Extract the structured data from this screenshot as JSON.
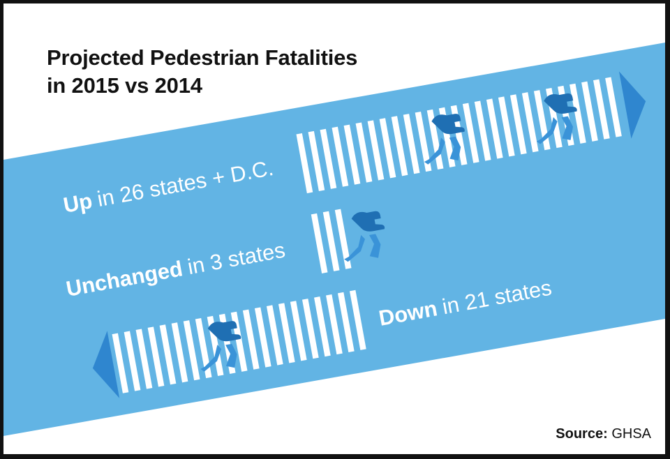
{
  "title": {
    "line1": "Projected Pedestrian Fatalities",
    "line2": "in 2015 vs 2014"
  },
  "source": {
    "label": "Source:",
    "value": "GHSA"
  },
  "colors": {
    "band": "#62b4e4",
    "arrow": "#2f86cf",
    "figure_dark": "#1f6fb3",
    "figure_light": "#3a93d8",
    "stripe": "#ffffff",
    "text": "#111111"
  },
  "chart_data": {
    "type": "bar",
    "categories": [
      "Up",
      "Unchanged",
      "Down"
    ],
    "values": [
      27,
      3,
      21
    ],
    "series": [
      {
        "values": [
          27,
          3,
          21
        ]
      }
    ],
    "labels": [
      {
        "emphasis": "Up",
        "rest": "in 26 states + D.C.",
        "count": 27,
        "direction": "right",
        "walkers": 2
      },
      {
        "emphasis": "Unchanged",
        "rest": "in 3 states",
        "count": 3,
        "direction": "none",
        "walkers": 1
      },
      {
        "emphasis": "Down",
        "rest": "in 21 states",
        "count": 21,
        "direction": "left",
        "walkers": 1
      }
    ]
  }
}
